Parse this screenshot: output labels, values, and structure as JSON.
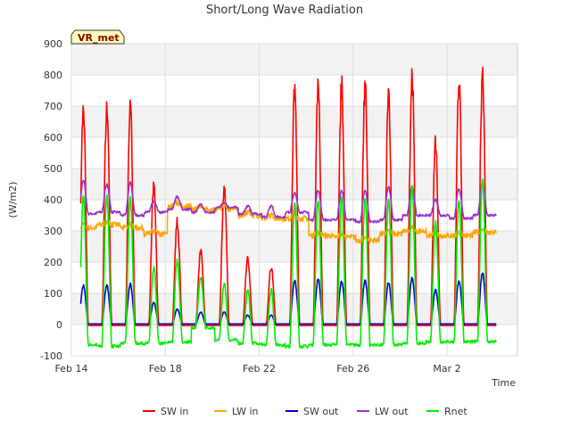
{
  "chart_data": {
    "type": "line",
    "title": "Short/Long Wave Radiation",
    "xlabel": "Time",
    "ylabel": "(W/m2)",
    "badge": "VR_met",
    "ylim": [
      -100,
      900
    ],
    "yticks": [
      -100,
      0,
      100,
      200,
      300,
      400,
      500,
      600,
      700,
      800,
      900
    ],
    "xlim": [
      "2014-02-14",
      "2014-03-05"
    ],
    "xticks": [
      {
        "label": "Feb 14",
        "day": 0
      },
      {
        "label": "Feb 18",
        "day": 4
      },
      {
        "label": "Feb 22",
        "day": 8
      },
      {
        "label": "Feb 26",
        "day": 12
      },
      {
        "label": "Mar 2",
        "day": 16
      }
    ],
    "grid": true,
    "legend": "bottom",
    "series": [
      {
        "name": "SW in",
        "color": "#ff0000",
        "daily_peak": [
          690,
          700,
          700,
          440,
          330,
          235,
          440,
          210,
          185,
          760,
          760,
          765,
          765,
          730,
          800,
          580,
          780,
          800
        ]
      },
      {
        "name": "LW in",
        "color": "#ffa500",
        "daily_level": [
          310,
          320,
          310,
          290,
          380,
          370,
          370,
          350,
          340,
          340,
          285,
          280,
          270,
          290,
          300,
          285,
          285,
          295
        ]
      },
      {
        "name": "SW out",
        "color": "#0000cc",
        "daily_peak": [
          125,
          125,
          130,
          70,
          50,
          40,
          40,
          30,
          30,
          140,
          145,
          140,
          140,
          135,
          150,
          110,
          140,
          165
        ]
      },
      {
        "name": "LW out",
        "color": "#9a32cd",
        "daily_level": [
          355,
          360,
          350,
          360,
          370,
          360,
          375,
          355,
          345,
          360,
          335,
          335,
          330,
          335,
          350,
          350,
          340,
          350
        ],
        "daily_peak": [
          460,
          450,
          455,
          395,
          410,
          385,
          390,
          380,
          380,
          420,
          430,
          430,
          430,
          440,
          440,
          400,
          435,
          450
        ]
      },
      {
        "name": "Rnet",
        "color": "#00ee00",
        "daily_peak": [
          410,
          415,
          405,
          185,
          205,
          150,
          130,
          110,
          110,
          385,
          400,
          410,
          405,
          400,
          440,
          330,
          400,
          470
        ],
        "daily_night": [
          -65,
          -70,
          -60,
          -60,
          -55,
          -10,
          -50,
          -60,
          -65,
          -70,
          -65,
          -65,
          -65,
          -65,
          -60,
          -55,
          -55,
          -55
        ]
      }
    ]
  }
}
